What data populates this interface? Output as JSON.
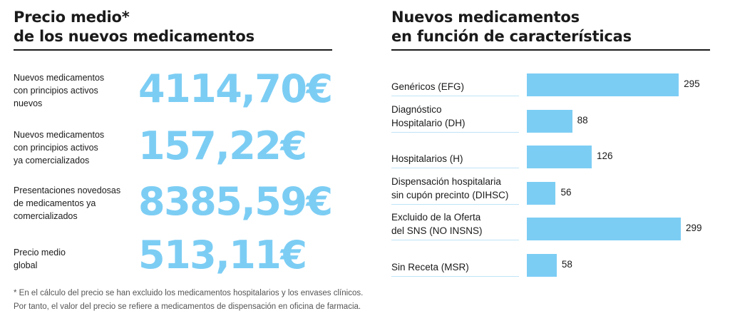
{
  "left_panel": {
    "title_lines": [
      "Precio medio*",
      "de los nuevos medicamentos"
    ],
    "rows": [
      {
        "label_lines": [
          "Nuevos medicamentos",
          "con principios activos",
          "nuevos"
        ],
        "value": "4114,70€"
      },
      {
        "label_lines": [
          "Nuevos medicamentos",
          "con principios activos",
          "ya comercializados"
        ],
        "value": "157,22€"
      },
      {
        "label_lines": [
          "Presentaciones novedosas",
          "de medicamentos ya",
          "comercializados"
        ],
        "value": "8385,59€"
      },
      {
        "label_lines": [
          "Precio medio",
          "global"
        ],
        "value": "513,11€"
      }
    ],
    "footnote_lines": [
      "* En el cálculo del precio se han excluido los medicamentos hospitalarios y los envases clínicos.",
      "Por tanto, el valor del precio se refiere a medicamentos de dispensación en oficina de farmacia."
    ]
  },
  "right_panel": {
    "title_lines": [
      "Nuevos medicamentos",
      "en función de características"
    ]
  },
  "colors": {
    "accent": "#7ccdf4",
    "text": "#1a1a1a",
    "row_rule": "#bfe4f7"
  },
  "chart_data": {
    "type": "bar",
    "orientation": "horizontal",
    "title": "Nuevos medicamentos en función de características",
    "categories": [
      [
        "Genéricos (EFG)"
      ],
      [
        "Diagnóstico",
        "Hospitalario (DH)"
      ],
      [
        "Hospitalarios (H)"
      ],
      [
        "Dispensación hospitalaria",
        "sin cupón precinto (DIHSC)"
      ],
      [
        "Excluido de la Oferta",
        "del SNS (NO INSNS)"
      ],
      [
        "Sin Receta (MSR)"
      ]
    ],
    "values": [
      295,
      88,
      126,
      56,
      299,
      58
    ],
    "xlim": [
      0,
      299
    ],
    "grid": false,
    "legend": "none",
    "data_labels": true
  }
}
